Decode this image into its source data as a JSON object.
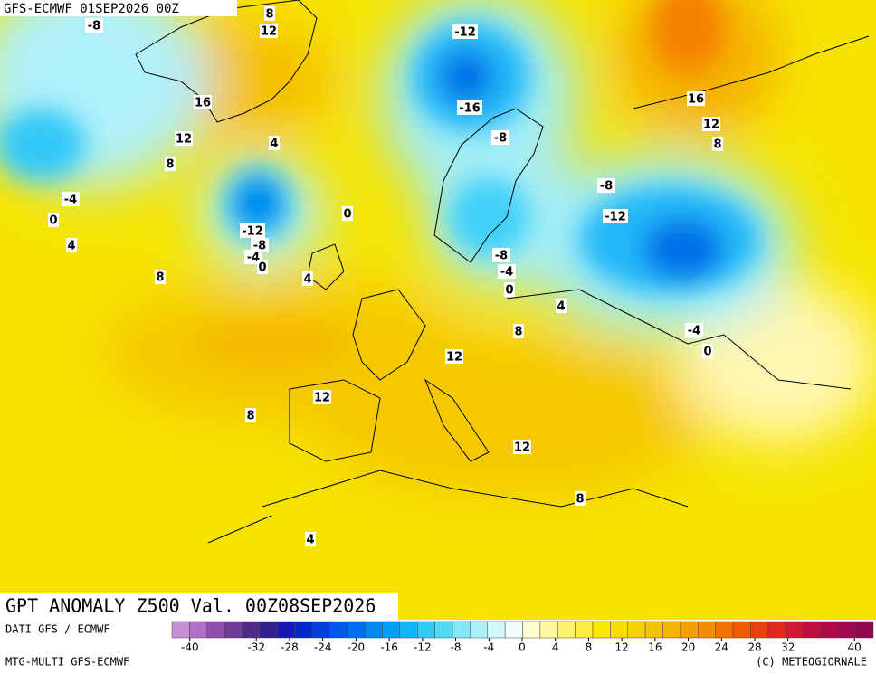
{
  "header": {
    "run": "GFS-ECMWF 01SEP2026 00Z",
    "title": "GPT ANOMALY Z500 Val. 00Z08SEP2026"
  },
  "footer": {
    "source": "DATI GFS / ECMWF",
    "model": "MTG-MULTI GFS-ECMWF",
    "copyright": "(C) METEOGIORNALE"
  },
  "contour_labels": [
    -8,
    8,
    12,
    -12,
    16,
    -16,
    12,
    4,
    -8,
    8,
    16,
    12,
    8,
    -8,
    -4,
    0,
    -12,
    0,
    -12,
    -8,
    4,
    -4,
    0,
    -8,
    -4,
    8,
    4,
    0,
    4,
    8,
    -4,
    0,
    12,
    12,
    8,
    12,
    8,
    4
  ],
  "colorbar": {
    "ticks": [
      -40,
      -32,
      -28,
      -24,
      -20,
      -16,
      -12,
      -8,
      -4,
      0,
      4,
      8,
      12,
      16,
      20,
      24,
      28,
      32,
      40
    ],
    "colors": [
      "#c890d8",
      "#b070c8",
      "#9050b0",
      "#703c98",
      "#502c88",
      "#302090",
      "#1818b0",
      "#0028c8",
      "#0040d8",
      "#0058e8",
      "#0070f0",
      "#0088f4",
      "#00a0f8",
      "#10b8f8",
      "#30ccf8",
      "#50dcf8",
      "#80e8fa",
      "#a8f0fa",
      "#d0f8fc",
      "#f0fcfc",
      "#fffcd0",
      "#fff8a0",
      "#fff070",
      "#ffec40",
      "#fde800",
      "#fadc00",
      "#f8d000",
      "#f5c400",
      "#f5b400",
      "#f5a000",
      "#f58c00",
      "#f57400",
      "#f05a00",
      "#e84010",
      "#e02820",
      "#d01830",
      "#c01040",
      "#b00848",
      "#a00850",
      "#900850"
    ]
  }
}
